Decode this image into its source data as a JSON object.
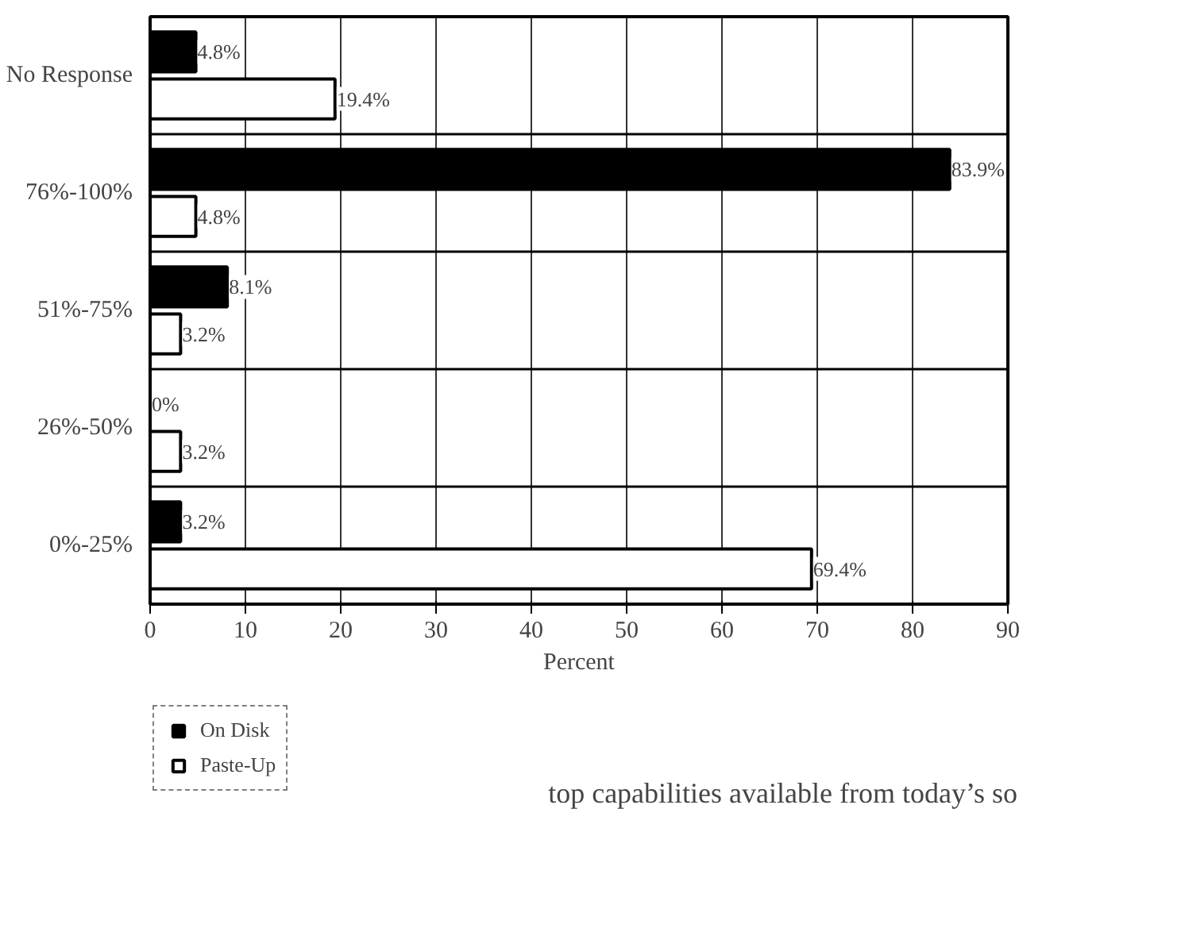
{
  "chart_data": {
    "type": "bar",
    "orientation": "horizontal",
    "xlabel": "Percent",
    "categories": [
      "No Response",
      "76%-100%",
      "51%-75%",
      "26%-50%",
      "0%-25%"
    ],
    "series": [
      {
        "name": "On Disk",
        "color": "#000000",
        "values": [
          4.8,
          83.9,
          8.1,
          0,
          3.2
        ],
        "value_labels": [
          "4.8%",
          "83.9%",
          "8.1%",
          "0%",
          "3.2%"
        ]
      },
      {
        "name": "Paste-Up",
        "color": "#ffffff",
        "values": [
          19.4,
          4.8,
          3.2,
          3.2,
          69.4
        ],
        "value_labels": [
          "19.4%",
          "4.8%",
          "3.2%",
          "3.2%",
          "69.4%"
        ]
      }
    ],
    "xlim": [
      0,
      90
    ],
    "xticks": [
      0,
      10,
      20,
      30,
      40,
      50,
      60,
      70,
      80,
      90
    ],
    "grid": true,
    "legend": "bottom left",
    "annotations": [
      "top capabilities available from today’s so"
    ]
  }
}
